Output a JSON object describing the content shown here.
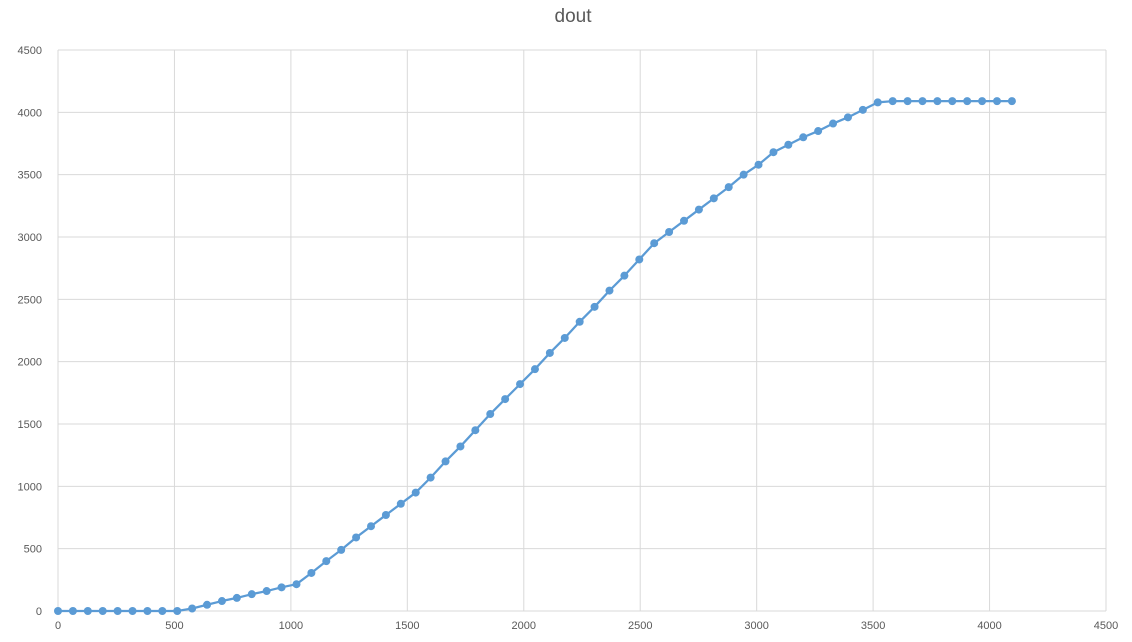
{
  "chart_data": {
    "type": "scatter",
    "mode": "lines+markers",
    "title": "dout",
    "xlabel": "",
    "ylabel": "",
    "xlim": [
      0,
      4500
    ],
    "ylim": [
      0,
      4500
    ],
    "x_ticks": [
      0,
      500,
      1000,
      1500,
      2000,
      2500,
      3000,
      3500,
      4000,
      4500
    ],
    "y_ticks": [
      0,
      500,
      1000,
      1500,
      2000,
      2500,
      3000,
      3500,
      4000,
      4500
    ],
    "grid": true,
    "legend": "none",
    "colors": {
      "series": "#5b9bd5",
      "grid": "#d9d9d9",
      "text": "#595959"
    },
    "series": [
      {
        "x": [
          0,
          64,
          128,
          192,
          256,
          320,
          384,
          448,
          512,
          576,
          640,
          704,
          768,
          832,
          896,
          960,
          1024,
          1088,
          1152,
          1216,
          1280,
          1344,
          1408,
          1472,
          1536,
          1600,
          1664,
          1728,
          1792,
          1856,
          1920,
          1984,
          2048,
          2112,
          2176,
          2240,
          2304,
          2368,
          2432,
          2496,
          2560,
          2624,
          2688,
          2752,
          2816,
          2880,
          2944,
          3008,
          3072,
          3136,
          3200,
          3264,
          3328,
          3392,
          3456,
          3520,
          3584,
          3648,
          3712,
          3776,
          3840,
          3904,
          3968,
          4032,
          4096
        ],
        "y": [
          0,
          0,
          0,
          0,
          0,
          0,
          0,
          0,
          0,
          20,
          50,
          80,
          105,
          135,
          160,
          190,
          215,
          305,
          400,
          490,
          590,
          680,
          770,
          860,
          950,
          1070,
          1200,
          1320,
          1450,
          1580,
          1700,
          1820,
          1940,
          2070,
          2190,
          2320,
          2440,
          2570,
          2690,
          2820,
          2950,
          3040,
          3130,
          3220,
          3310,
          3400,
          3500,
          3580,
          3680,
          3740,
          3800,
          3850,
          3910,
          3960,
          4020,
          4080,
          4090,
          4090,
          4090,
          4090,
          4090,
          4090,
          4090,
          4090,
          4090
        ]
      }
    ]
  }
}
